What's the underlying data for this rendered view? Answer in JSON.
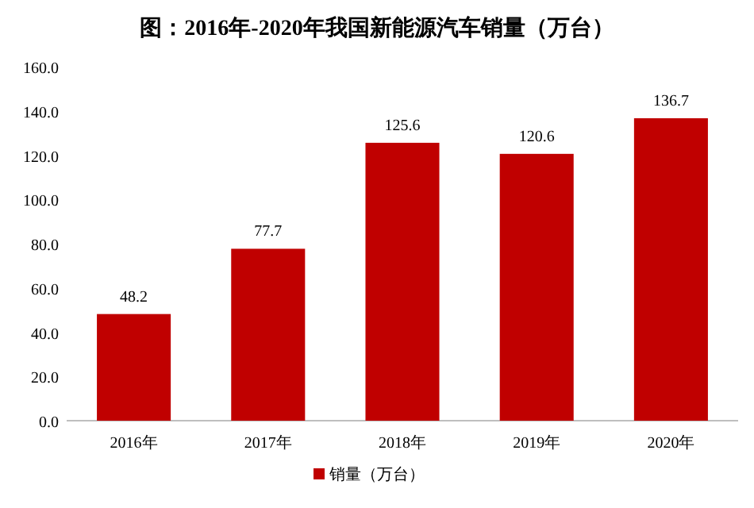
{
  "chart_data": {
    "type": "bar",
    "title": "图：2016年-2020年我国新能源汽车销量（万台）",
    "categories": [
      "2016年",
      "2017年",
      "2018年",
      "2019年",
      "2020年"
    ],
    "series": [
      {
        "name": "销量（万台）",
        "color": "#c00000",
        "values": [
          48.2,
          77.7,
          125.6,
          120.6,
          136.7
        ]
      }
    ],
    "ylim": [
      0,
      160
    ],
    "yticks": [
      {
        "value": 0,
        "label": "0.0"
      },
      {
        "value": 20,
        "label": "20.0"
      },
      {
        "value": 40,
        "label": "40.0"
      },
      {
        "value": 60,
        "label": "60.0"
      },
      {
        "value": 80,
        "label": "80.0"
      },
      {
        "value": 100,
        "label": "100.0"
      },
      {
        "value": 120,
        "label": "120.0"
      },
      {
        "value": 140,
        "label": "140.0"
      },
      {
        "value": 160,
        "label": "160.0"
      }
    ],
    "data_labels": true,
    "legend": "bottom",
    "grid": false
  }
}
